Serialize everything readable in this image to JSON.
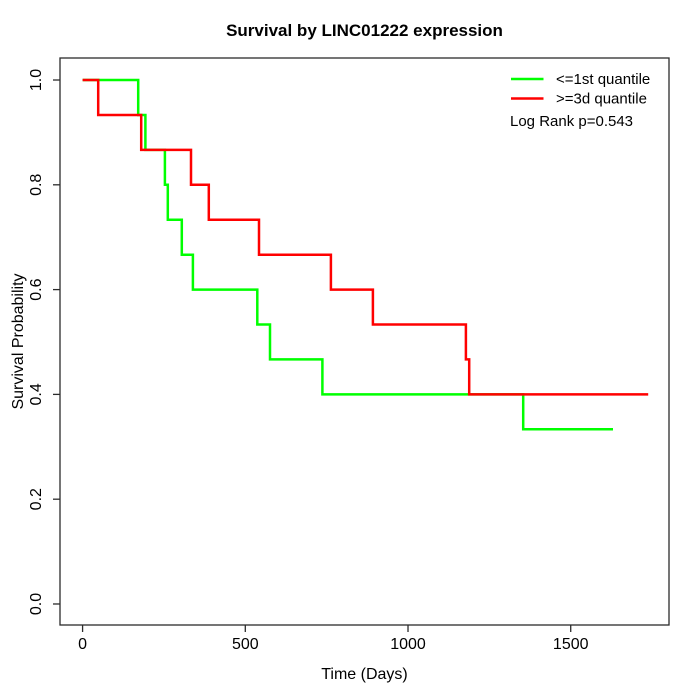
{
  "chart_data": {
    "type": "line",
    "variant": "kaplan_meier_step",
    "title": "Survival by LINC01222 expression",
    "xlabel": "Time (Days)",
    "ylabel": "Survival Probability",
    "x_ticks": [
      0,
      500,
      1000,
      1500
    ],
    "x_tick_labels": [
      "0",
      "500",
      "1000",
      "1500"
    ],
    "y_ticks": [
      0.0,
      0.2,
      0.4,
      0.6,
      0.8,
      1.0
    ],
    "y_tick_labels": [
      "0.0",
      "0.2",
      "0.4",
      "0.6",
      "0.8",
      "1.0"
    ],
    "xlim": [
      -69.4,
      1802
    ],
    "ylim": [
      -0.0401,
      1.042
    ],
    "grid": false,
    "annotation": "Log Rank p=0.543",
    "legend": {
      "position": "topright",
      "entries": [
        {
          "label": "<=1st quantile",
          "color": "#00FF00"
        },
        {
          "label": ">=3d quantile",
          "color": "#FF0000"
        }
      ]
    },
    "series": [
      {
        "name": "<=1st quantile",
        "color": "#00FF00",
        "steps": [
          [
            0,
            1.0
          ],
          [
            171,
            0.9333
          ],
          [
            193,
            0.8667
          ],
          [
            253,
            0.8
          ],
          [
            262,
            0.7333
          ],
          [
            305,
            0.6667
          ],
          [
            339,
            0.6
          ],
          [
            537,
            0.5333
          ],
          [
            576,
            0.4667
          ],
          [
            737,
            0.4
          ],
          [
            1354,
            0.3333
          ]
        ],
        "end_time": 1630
      },
      {
        "name": ">=3d quantile",
        "color": "#FF0000",
        "steps": [
          [
            0,
            1.0
          ],
          [
            48,
            0.9333
          ],
          [
            180,
            0.8667
          ],
          [
            333,
            0.8
          ],
          [
            388,
            0.7333
          ],
          [
            542,
            0.6667
          ],
          [
            763,
            0.6
          ],
          [
            892,
            0.5333
          ],
          [
            1178,
            0.4667
          ],
          [
            1188,
            0.4
          ]
        ],
        "end_time": 1738
      }
    ]
  },
  "colors": {
    "background": "#FFFFFF",
    "axis": "#2b2b2b",
    "text": "#000000"
  }
}
